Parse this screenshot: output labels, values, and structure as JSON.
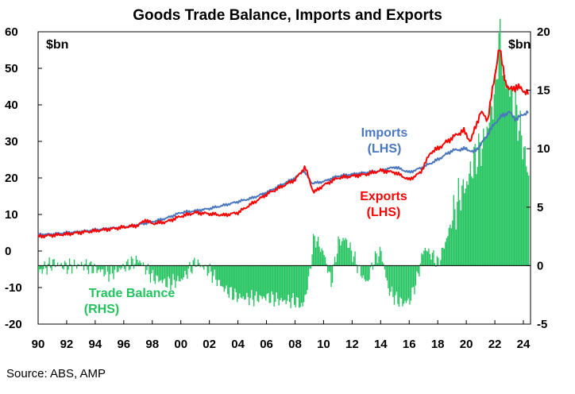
{
  "chart_data": {
    "type": "bar+line",
    "title": "Goods Trade Balance, Imports and Exports",
    "left_unit": "$bn",
    "right_unit": "$bn",
    "left_axis": {
      "min": -20,
      "max": 60,
      "ticks": [
        60,
        50,
        40,
        30,
        20,
        10,
        0,
        -10,
        -20
      ]
    },
    "right_axis": {
      "min": -5,
      "max": 20,
      "ticks": [
        20,
        15,
        10,
        5,
        0,
        -5
      ]
    },
    "x_axis": {
      "min": 1990,
      "max": 2024.5,
      "tick_labels": [
        "90",
        "92",
        "94",
        "96",
        "98",
        "00",
        "02",
        "04",
        "06",
        "08",
        "10",
        "12",
        "14",
        "16",
        "18",
        "20",
        "22",
        "24"
      ]
    },
    "annotations": {
      "imports": [
        "Imports",
        "(LHS)"
      ],
      "exports": [
        "Exports",
        "(LHS)"
      ],
      "balance": [
        "Trade Balance",
        "(RHS)"
      ]
    },
    "colors": {
      "imports": "#4a77bd",
      "exports": "#ff0000",
      "balance": "#22c35e"
    },
    "series": [
      {
        "name": "Imports",
        "axis": "left",
        "x": [
          1990,
          1991,
          1992,
          1993,
          1994,
          1995,
          1996,
          1997,
          1998,
          1999,
          2000,
          2001,
          2002,
          2003,
          2004,
          2005,
          2006,
          2007,
          2008,
          2008.6,
          2009.2,
          2010,
          2011,
          2012,
          2013,
          2014,
          2015,
          2016,
          2017,
          2018,
          2019,
          2020,
          2020.5,
          2021,
          2021.5,
          2022,
          2022.5,
          2023,
          2023.5,
          2024,
          2024.4
        ],
        "y": [
          4.5,
          4.6,
          5,
          5.3,
          5.8,
          6.2,
          6.6,
          7.2,
          8,
          9,
          10.5,
          11,
          11.6,
          12.5,
          13.5,
          14.5,
          16,
          18,
          20,
          22,
          18.5,
          19,
          20.5,
          21,
          21.5,
          22,
          23,
          21.5,
          23,
          25,
          27.5,
          28,
          27,
          29,
          32,
          35,
          37,
          38,
          36,
          37.5,
          38
        ]
      },
      {
        "name": "Exports",
        "axis": "left",
        "x": [
          1990,
          1991,
          1992,
          1993,
          1994,
          1995,
          1996,
          1997,
          1997.5,
          1998,
          1999,
          2000,
          2001,
          2002,
          2003,
          2004,
          2005,
          2006,
          2007,
          2008,
          2008.7,
          2009.3,
          2010,
          2011,
          2012,
          2013,
          2014,
          2015,
          2016,
          2016.8,
          2017.5,
          2018,
          2019,
          2019.8,
          2020.3,
          2021,
          2021.5,
          2022,
          2022.3,
          2022.7,
          2023,
          2023.5,
          2024,
          2024.4
        ],
        "y": [
          4,
          4.3,
          4.6,
          5.1,
          5.5,
          6,
          6.5,
          7,
          8.5,
          7.5,
          8,
          9.5,
          10.5,
          10.2,
          9.8,
          10.5,
          13,
          15.5,
          17.5,
          19.5,
          23,
          16,
          18,
          20,
          20.5,
          21,
          22,
          21.5,
          19.5,
          21.5,
          27,
          28,
          31,
          33,
          30,
          38,
          36,
          48,
          56,
          47,
          44,
          45,
          44,
          43
        ]
      },
      {
        "name": "Trade Balance",
        "axis": "right",
        "x": [
          1990,
          1991,
          1992,
          1993,
          1994,
          1995,
          1996,
          1997,
          1998,
          1999,
          2000,
          2001,
          2002,
          2003,
          2004,
          2005,
          2006,
          2007,
          2008,
          2008.5,
          2008.9,
          2009.3,
          2010,
          2010.5,
          2011,
          2011.5,
          2012,
          2012.5,
          2013,
          2013.5,
          2014,
          2014.5,
          2015,
          2015.5,
          2016,
          2016.5,
          2017,
          2017.5,
          2018,
          2018.5,
          2019,
          2019.5,
          2020,
          2020.5,
          2021,
          2021.5,
          2022,
          2022.3,
          2022.6,
          2023,
          2023.5,
          2024,
          2024.4
        ],
        "y": [
          -0.5,
          0.2,
          -0.1,
          0.1,
          -0.3,
          -0.7,
          -0.1,
          0.5,
          -1,
          -1.5,
          -1.2,
          0.3,
          -0.5,
          -2,
          -2.7,
          -2.8,
          -2.7,
          -3,
          -3,
          -3.5,
          -1.5,
          2.5,
          1,
          -1.5,
          2,
          2.3,
          1,
          -0.5,
          -1.5,
          0.5,
          1.2,
          -2,
          -2.8,
          -3.2,
          -3,
          -1.2,
          1.5,
          1,
          0.2,
          2,
          4,
          6,
          7,
          9,
          10,
          12,
          15,
          20,
          16,
          15,
          13,
          10,
          7
        ]
      }
    ]
  },
  "source": "Source: ABS, AMP"
}
